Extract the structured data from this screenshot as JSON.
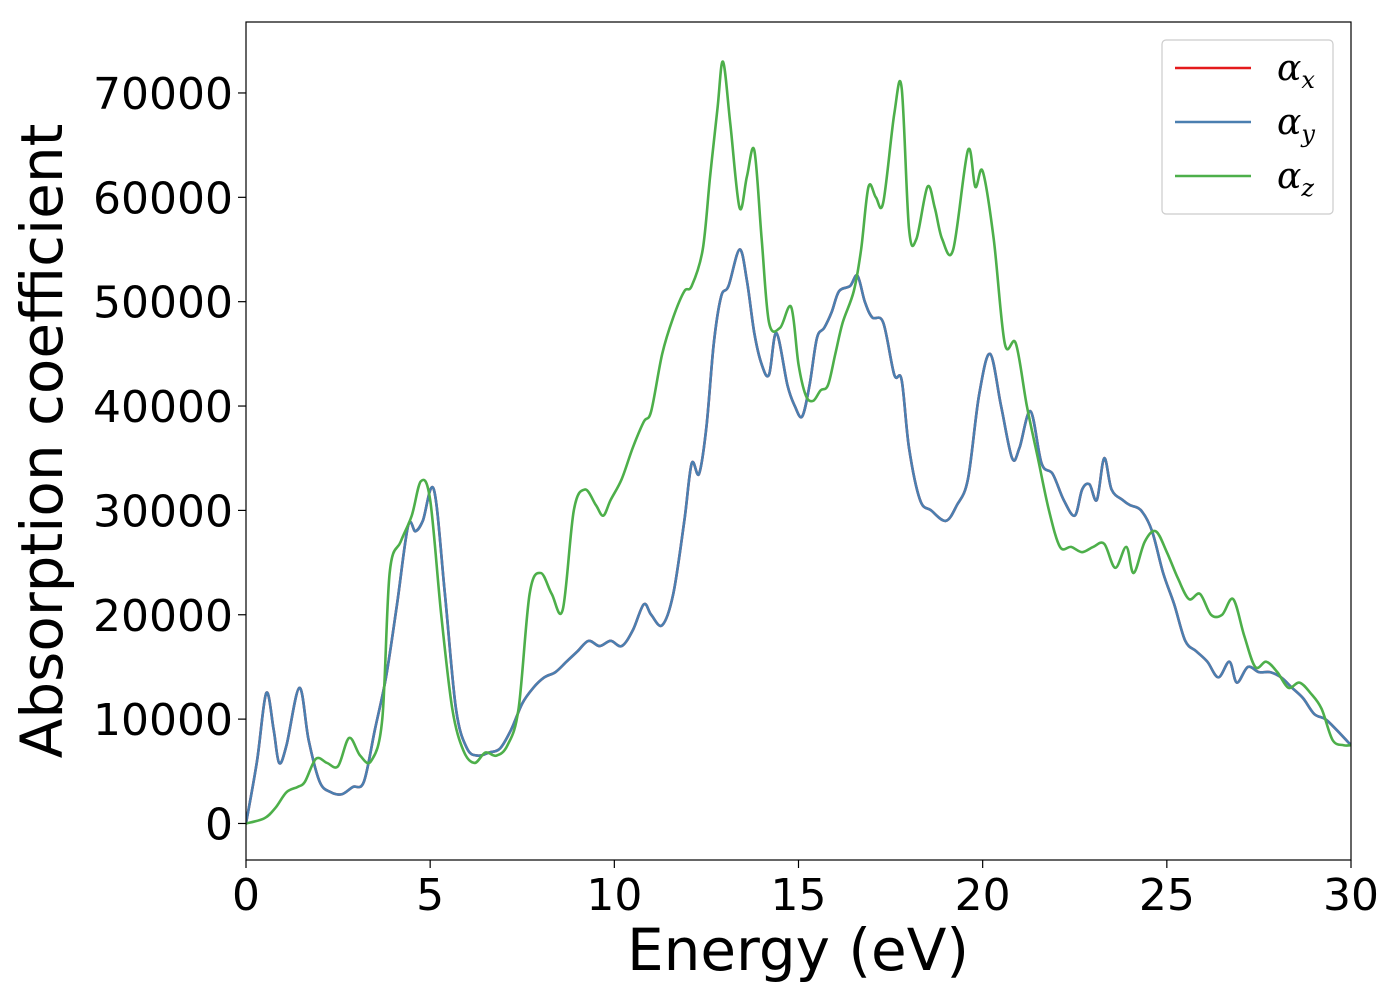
{
  "chart_data": {
    "type": "line",
    "title": "",
    "xlabel": "Energy (eV)",
    "ylabel": "Absorption coefficient",
    "xlim": [
      0,
      30
    ],
    "ylim": [
      -3500,
      76800
    ],
    "xticks": [
      0,
      5,
      10,
      15,
      20,
      25,
      30
    ],
    "xtick_labels": [
      "0",
      "5",
      "10",
      "15",
      "20",
      "25",
      "30"
    ],
    "yticks": [
      0,
      10000,
      20000,
      30000,
      40000,
      50000,
      60000,
      70000
    ],
    "ytick_labels": [
      "0",
      "10000",
      "20000",
      "30000",
      "40000",
      "50000",
      "60000",
      "70000"
    ],
    "grid": false,
    "legend": {
      "position": "top-right"
    },
    "series": [
      {
        "name": "α",
        "sub": "x",
        "color": "#e41a1c",
        "x": [
          0,
          0.3,
          0.55,
          0.75,
          0.9,
          1.1,
          1.45,
          1.7,
          2.0,
          2.3,
          2.6,
          2.9,
          3.2,
          3.5,
          3.8,
          4.1,
          4.4,
          4.6,
          4.8,
          5.1,
          5.4,
          5.7,
          6.0,
          6.3,
          6.6,
          6.9,
          7.2,
          7.5,
          7.8,
          8.1,
          8.4,
          8.7,
          9.0,
          9.3,
          9.6,
          9.9,
          10.2,
          10.5,
          10.8,
          11.0,
          11.3,
          11.6,
          11.9,
          12.1,
          12.3,
          12.5,
          12.7,
          12.9,
          13.1,
          13.4,
          13.6,
          13.8,
          14.0,
          14.2,
          14.4,
          14.7,
          14.9,
          15.1,
          15.3,
          15.5,
          15.7,
          15.9,
          16.1,
          16.4,
          16.6,
          16.8,
          17.0,
          17.3,
          17.6,
          17.8,
          18.0,
          18.3,
          18.6,
          19.0,
          19.3,
          19.6,
          19.9,
          20.2,
          20.5,
          20.8,
          21.0,
          21.3,
          21.6,
          21.9,
          22.2,
          22.5,
          22.7,
          22.9,
          23.1,
          23.3,
          23.5,
          23.8,
          24.0,
          24.3,
          24.6,
          24.9,
          25.2,
          25.5,
          25.8,
          26.1,
          26.4,
          26.7,
          26.9,
          27.2,
          27.5,
          27.8,
          28.1,
          28.4,
          28.7,
          29.0,
          29.3,
          29.6,
          30.0
        ],
        "y": [
          0,
          6000,
          12500,
          9000,
          5800,
          7500,
          13000,
          8000,
          4000,
          3000,
          2800,
          3500,
          4000,
          9000,
          14000,
          21000,
          28500,
          28000,
          29000,
          32000,
          22000,
          11000,
          7200,
          6500,
          6800,
          7200,
          9000,
          11500,
          13000,
          14000,
          14500,
          15500,
          16500,
          17500,
          17000,
          17500,
          17000,
          18500,
          21000,
          20000,
          19000,
          22000,
          29000,
          34500,
          33500,
          38000,
          46000,
          50500,
          51500,
          55000,
          52000,
          47000,
          44000,
          43000,
          47000,
          42000,
          40000,
          39000,
          42000,
          46500,
          47500,
          49000,
          51000,
          51500,
          52500,
          50000,
          48500,
          48000,
          43000,
          42500,
          36000,
          31000,
          30000,
          29000,
          30500,
          33000,
          41000,
          45000,
          40000,
          35000,
          36000,
          39500,
          34500,
          33500,
          31000,
          29500,
          32000,
          32500,
          31000,
          35000,
          32000,
          31000,
          30500,
          30000,
          28000,
          24000,
          21000,
          17500,
          16500,
          15500,
          14000,
          15500,
          13500,
          15000,
          14500,
          14500,
          14000,
          13000,
          12000,
          10500,
          10000,
          9000,
          7500
        ]
      },
      {
        "name": "α",
        "sub": "y",
        "color": "#4a7fb0",
        "x": [
          0,
          0.3,
          0.55,
          0.75,
          0.9,
          1.1,
          1.45,
          1.7,
          2.0,
          2.3,
          2.6,
          2.9,
          3.2,
          3.5,
          3.8,
          4.1,
          4.4,
          4.6,
          4.8,
          5.1,
          5.4,
          5.7,
          6.0,
          6.3,
          6.6,
          6.9,
          7.2,
          7.5,
          7.8,
          8.1,
          8.4,
          8.7,
          9.0,
          9.3,
          9.6,
          9.9,
          10.2,
          10.5,
          10.8,
          11.0,
          11.3,
          11.6,
          11.9,
          12.1,
          12.3,
          12.5,
          12.7,
          12.9,
          13.1,
          13.4,
          13.6,
          13.8,
          14.0,
          14.2,
          14.4,
          14.7,
          14.9,
          15.1,
          15.3,
          15.5,
          15.7,
          15.9,
          16.1,
          16.4,
          16.6,
          16.8,
          17.0,
          17.3,
          17.6,
          17.8,
          18.0,
          18.3,
          18.6,
          19.0,
          19.3,
          19.6,
          19.9,
          20.2,
          20.5,
          20.8,
          21.0,
          21.3,
          21.6,
          21.9,
          22.2,
          22.5,
          22.7,
          22.9,
          23.1,
          23.3,
          23.5,
          23.8,
          24.0,
          24.3,
          24.6,
          24.9,
          25.2,
          25.5,
          25.8,
          26.1,
          26.4,
          26.7,
          26.9,
          27.2,
          27.5,
          27.8,
          28.1,
          28.4,
          28.7,
          29.0,
          29.3,
          29.6,
          30.0
        ],
        "y": [
          0,
          6000,
          12500,
          9000,
          5800,
          7500,
          13000,
          8000,
          4000,
          3000,
          2800,
          3500,
          4000,
          9000,
          14000,
          21000,
          28500,
          28000,
          29000,
          32000,
          22000,
          11000,
          7200,
          6500,
          6800,
          7200,
          9000,
          11500,
          13000,
          14000,
          14500,
          15500,
          16500,
          17500,
          17000,
          17500,
          17000,
          18500,
          21000,
          20000,
          19000,
          22000,
          29000,
          34500,
          33500,
          38000,
          46000,
          50500,
          51500,
          55000,
          52000,
          47000,
          44000,
          43000,
          47000,
          42000,
          40000,
          39000,
          42000,
          46500,
          47500,
          49000,
          51000,
          51500,
          52500,
          50000,
          48500,
          48000,
          43000,
          42500,
          36000,
          31000,
          30000,
          29000,
          30500,
          33000,
          41000,
          45000,
          40000,
          35000,
          36000,
          39500,
          34500,
          33500,
          31000,
          29500,
          32000,
          32500,
          31000,
          35000,
          32000,
          31000,
          30500,
          30000,
          28000,
          24000,
          21000,
          17500,
          16500,
          15500,
          14000,
          15500,
          13500,
          15000,
          14500,
          14500,
          14000,
          13000,
          12000,
          10500,
          10000,
          9000,
          7500
        ]
      },
      {
        "name": "α",
        "sub": "z",
        "color": "#4daf4a",
        "x": [
          0,
          0.5,
          0.8,
          1.1,
          1.4,
          1.6,
          1.9,
          2.2,
          2.5,
          2.8,
          3.1,
          3.4,
          3.7,
          3.9,
          4.2,
          4.5,
          4.75,
          5.0,
          5.3,
          5.6,
          5.9,
          6.2,
          6.5,
          6.8,
          7.1,
          7.4,
          7.7,
          8.0,
          8.3,
          8.6,
          8.9,
          9.2,
          9.5,
          9.7,
          9.9,
          10.2,
          10.5,
          10.8,
          11.0,
          11.3,
          11.6,
          11.9,
          12.1,
          12.4,
          12.6,
          12.8,
          12.95,
          13.15,
          13.4,
          13.6,
          13.8,
          14.0,
          14.2,
          14.5,
          14.8,
          15.0,
          15.2,
          15.4,
          15.6,
          15.8,
          16.0,
          16.2,
          16.5,
          16.7,
          16.9,
          17.1,
          17.3,
          17.6,
          17.8,
          18.0,
          18.2,
          18.5,
          18.7,
          18.9,
          19.2,
          19.6,
          19.8,
          20.0,
          20.3,
          20.6,
          20.9,
          21.2,
          21.5,
          21.8,
          22.1,
          22.4,
          22.7,
          23.0,
          23.3,
          23.6,
          23.9,
          24.1,
          24.4,
          24.7,
          25.0,
          25.3,
          25.6,
          25.9,
          26.2,
          26.5,
          26.8,
          27.1,
          27.4,
          27.7,
          28.0,
          28.3,
          28.6,
          28.9,
          29.2,
          29.5,
          29.8,
          30.0
        ],
        "y": [
          0,
          500,
          1500,
          3000,
          3500,
          4000,
          6200,
          5800,
          5500,
          8200,
          6500,
          6000,
          10000,
          24000,
          27000,
          29500,
          32800,
          31000,
          20000,
          11000,
          7000,
          5800,
          6800,
          6500,
          7500,
          11000,
          22000,
          24000,
          22000,
          20500,
          30000,
          32000,
          30500,
          29500,
          31000,
          33000,
          36000,
          38500,
          39500,
          45000,
          48500,
          51000,
          51500,
          55000,
          62000,
          68500,
          73000,
          67000,
          59000,
          62000,
          64500,
          56000,
          48000,
          47500,
          49500,
          44000,
          41000,
          40500,
          41500,
          42000,
          45000,
          48000,
          51000,
          55000,
          61000,
          60000,
          59500,
          68000,
          70500,
          57000,
          56000,
          61000,
          59000,
          56000,
          55000,
          64500,
          61000,
          62500,
          56000,
          46000,
          46000,
          40000,
          35000,
          30000,
          26500,
          26500,
          26000,
          26500,
          26800,
          24500,
          26500,
          24000,
          27000,
          28000,
          26000,
          23500,
          21500,
          22000,
          20000,
          20000,
          21500,
          18000,
          15000,
          15500,
          14500,
          13000,
          13500,
          12500,
          11000,
          8000,
          7500,
          7500
        ]
      }
    ]
  }
}
